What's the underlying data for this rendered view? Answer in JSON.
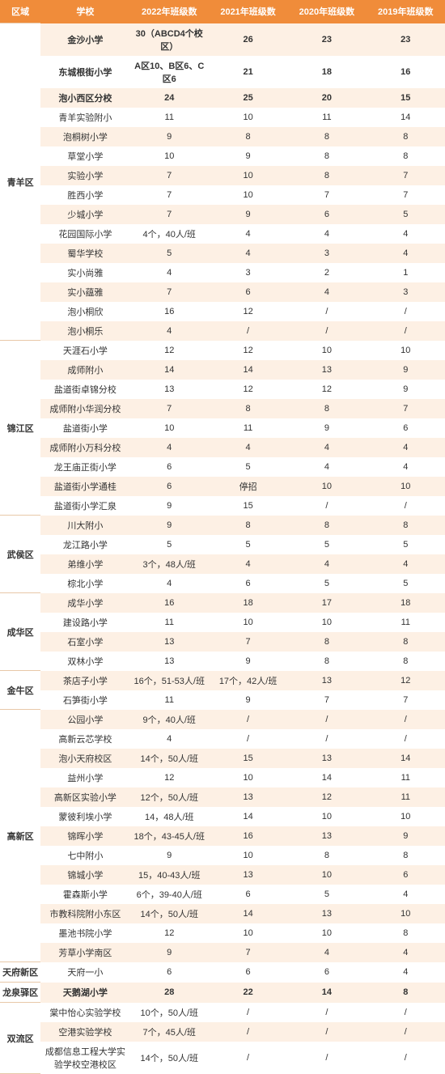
{
  "headers": [
    "区域",
    "学校",
    "2022年班级数",
    "2021年班级数",
    "2020年班级数",
    "2019年班级数"
  ],
  "regions": [
    {
      "name": "青羊区",
      "rows": [
        {
          "b": 1,
          "e": 1,
          "c": [
            "金沙小学",
            "30（ABCD4个校区）",
            "26",
            "23",
            "23"
          ]
        },
        {
          "b": 1,
          "e": 0,
          "c": [
            "东城根街小学",
            "A区10、B区6、C区6",
            "21",
            "18",
            "16"
          ]
        },
        {
          "b": 1,
          "e": 1,
          "c": [
            "泡小西区分校",
            "24",
            "25",
            "20",
            "15"
          ]
        },
        {
          "b": 0,
          "e": 0,
          "c": [
            "青羊实验附小",
            "11",
            "10",
            "11",
            "14"
          ]
        },
        {
          "b": 0,
          "e": 1,
          "c": [
            "泡桐树小学",
            "9",
            "8",
            "8",
            "8"
          ]
        },
        {
          "b": 0,
          "e": 0,
          "c": [
            "草堂小学",
            "10",
            "9",
            "8",
            "8"
          ]
        },
        {
          "b": 0,
          "e": 1,
          "c": [
            "实验小学",
            "7",
            "10",
            "8",
            "7"
          ]
        },
        {
          "b": 0,
          "e": 0,
          "c": [
            "胜西小学",
            "7",
            "10",
            "7",
            "7"
          ]
        },
        {
          "b": 0,
          "e": 1,
          "c": [
            "少城小学",
            "7",
            "9",
            "6",
            "5"
          ]
        },
        {
          "b": 0,
          "e": 0,
          "c": [
            "花园国际小学",
            "4个，40人/班",
            "4",
            "4",
            "4"
          ]
        },
        {
          "b": 0,
          "e": 1,
          "c": [
            "蜀华学校",
            "5",
            "4",
            "3",
            "4"
          ]
        },
        {
          "b": 0,
          "e": 0,
          "c": [
            "实小尚雅",
            "4",
            "3",
            "2",
            "1"
          ]
        },
        {
          "b": 0,
          "e": 1,
          "c": [
            "实小蕴雅",
            "7",
            "6",
            "4",
            "3"
          ]
        },
        {
          "b": 0,
          "e": 0,
          "c": [
            "泡小桐欣",
            "16",
            "12",
            "/",
            "/"
          ]
        },
        {
          "b": 0,
          "e": 1,
          "c": [
            "泡小桐乐",
            "4",
            "/",
            "/",
            "/"
          ]
        }
      ]
    },
    {
      "name": "锦江区",
      "rows": [
        {
          "b": 0,
          "e": 0,
          "c": [
            "天涯石小学",
            "12",
            "12",
            "10",
            "10"
          ]
        },
        {
          "b": 0,
          "e": 1,
          "c": [
            "成师附小",
            "14",
            "14",
            "13",
            "9"
          ]
        },
        {
          "b": 0,
          "e": 0,
          "c": [
            "盐道街卓锦分校",
            "13",
            "12",
            "12",
            "9"
          ]
        },
        {
          "b": 0,
          "e": 1,
          "c": [
            "成师附小华润分校",
            "7",
            "8",
            "8",
            "7"
          ]
        },
        {
          "b": 0,
          "e": 0,
          "c": [
            "盐道街小学",
            "10",
            "11",
            "9",
            "6"
          ]
        },
        {
          "b": 0,
          "e": 1,
          "c": [
            "成师附小万科分校",
            "4",
            "4",
            "4",
            "4"
          ]
        },
        {
          "b": 0,
          "e": 0,
          "c": [
            "龙王庙正街小学",
            "6",
            "5",
            "4",
            "4"
          ]
        },
        {
          "b": 0,
          "e": 1,
          "c": [
            "盐道街小学通桂",
            "6",
            "停招",
            "10",
            "10"
          ]
        },
        {
          "b": 0,
          "e": 0,
          "c": [
            "盐道街小学汇泉",
            "9",
            "15",
            "/",
            "/"
          ]
        }
      ]
    },
    {
      "name": "武侯区",
      "rows": [
        {
          "b": 0,
          "e": 1,
          "c": [
            "川大附小",
            "9",
            "8",
            "8",
            "8"
          ]
        },
        {
          "b": 0,
          "e": 0,
          "c": [
            "龙江路小学",
            "5",
            "5",
            "5",
            "5"
          ]
        },
        {
          "b": 0,
          "e": 1,
          "c": [
            "弟维小学",
            "3个，48人/班",
            "4",
            "4",
            "4"
          ]
        },
        {
          "b": 0,
          "e": 0,
          "c": [
            "棕北小学",
            "4",
            "6",
            "5",
            "5"
          ]
        }
      ]
    },
    {
      "name": "成华区",
      "rows": [
        {
          "b": 0,
          "e": 1,
          "c": [
            "成华小学",
            "16",
            "18",
            "17",
            "18"
          ]
        },
        {
          "b": 0,
          "e": 0,
          "c": [
            "建设路小学",
            "11",
            "10",
            "10",
            "11"
          ]
        },
        {
          "b": 0,
          "e": 1,
          "c": [
            "石室小学",
            "13",
            "7",
            "8",
            "8"
          ]
        },
        {
          "b": 0,
          "e": 0,
          "c": [
            "双林小学",
            "13",
            "9",
            "8",
            "8"
          ]
        }
      ]
    },
    {
      "name": "金牛区",
      "rows": [
        {
          "b": 0,
          "e": 1,
          "c": [
            "茶店子小学",
            "16个，51-53人/班",
            "17个，42人/班",
            "13",
            "12"
          ]
        },
        {
          "b": 0,
          "e": 0,
          "c": [
            "石笋街小学",
            "11",
            "9",
            "7",
            "7"
          ]
        }
      ]
    },
    {
      "name": "高新区",
      "rows": [
        {
          "b": 0,
          "e": 1,
          "c": [
            "公园小学",
            "9个，40人/班",
            "/",
            "/",
            "/"
          ]
        },
        {
          "b": 0,
          "e": 0,
          "c": [
            "高新云芯学校",
            "4",
            "/",
            "/",
            "/"
          ]
        },
        {
          "b": 0,
          "e": 1,
          "c": [
            "泡小天府校区",
            "14个，50人/班",
            "15",
            "13",
            "14"
          ]
        },
        {
          "b": 0,
          "e": 0,
          "c": [
            "益州小学",
            "12",
            "10",
            "14",
            "11"
          ]
        },
        {
          "b": 0,
          "e": 1,
          "c": [
            "高新区实验小学",
            "12个，50人/班",
            "13",
            "12",
            "11"
          ]
        },
        {
          "b": 0,
          "e": 0,
          "c": [
            "蒙彼利埃小学",
            "14，48人/班",
            "14",
            "10",
            "10"
          ]
        },
        {
          "b": 0,
          "e": 1,
          "c": [
            "锦晖小学",
            "18个，43-45人/班",
            "16",
            "13",
            "9"
          ]
        },
        {
          "b": 0,
          "e": 0,
          "c": [
            "七中附小",
            "9",
            "10",
            "8",
            "8"
          ]
        },
        {
          "b": 0,
          "e": 1,
          "c": [
            "锦城小学",
            "15，40-43人/班",
            "13",
            "10",
            "6"
          ]
        },
        {
          "b": 0,
          "e": 0,
          "c": [
            "霍森斯小学",
            "6个，39-40人/班",
            "6",
            "5",
            "4"
          ]
        },
        {
          "b": 0,
          "e": 1,
          "c": [
            "市教科院附小东区",
            "14个，50人/班",
            "14",
            "13",
            "10"
          ]
        },
        {
          "b": 0,
          "e": 0,
          "c": [
            "墨池书院小学",
            "12",
            "10",
            "10",
            "8"
          ]
        },
        {
          "b": 0,
          "e": 1,
          "c": [
            "芳草小学南区",
            "9",
            "7",
            "4",
            "4"
          ]
        }
      ]
    },
    {
      "name": "天府新区",
      "rows": [
        {
          "b": 0,
          "e": 0,
          "c": [
            "天府一小",
            "6",
            "6",
            "6",
            "4"
          ]
        }
      ]
    },
    {
      "name": "龙泉驿区",
      "rows": [
        {
          "b": 1,
          "e": 1,
          "c": [
            "天鹅湖小学",
            "28",
            "22",
            "14",
            "8"
          ]
        }
      ]
    },
    {
      "name": "双流区",
      "rows": [
        {
          "b": 0,
          "e": 0,
          "c": [
            "棠中怡心实验学校",
            "10个，50人/班",
            "/",
            "/",
            "/"
          ]
        },
        {
          "b": 0,
          "e": 1,
          "c": [
            "空港实验学校",
            "7个，45人/班",
            "/",
            "/",
            "/"
          ]
        },
        {
          "b": 0,
          "e": 0,
          "c": [
            "成都信息工程大学实验学校空港校区",
            "14个，50人/班",
            "/",
            "/",
            "/"
          ]
        }
      ]
    }
  ]
}
